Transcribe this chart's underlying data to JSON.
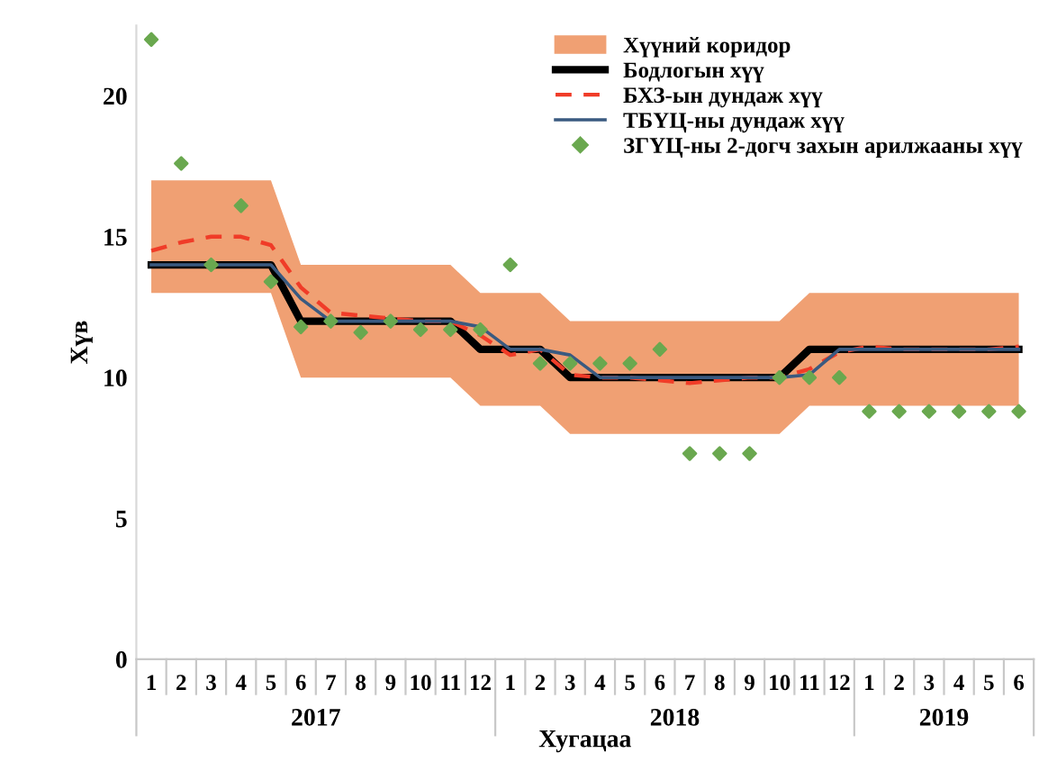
{
  "chart_data": {
    "type": "line",
    "xlabel": "Хугацаа",
    "ylabel": "Хүв",
    "categories": [
      "1",
      "2",
      "3",
      "4",
      "5",
      "6",
      "7",
      "8",
      "9",
      "10",
      "11",
      "12",
      "1",
      "2",
      "3",
      "4",
      "5",
      "6",
      "7",
      "8",
      "9",
      "10",
      "11",
      "12",
      "1",
      "2",
      "3",
      "4",
      "5",
      "6"
    ],
    "annotations": [
      "2017",
      "2018",
      "2019"
    ],
    "ylim": [
      0,
      22.5
    ],
    "yticks": [
      0,
      5,
      10,
      15,
      20
    ],
    "grid": false,
    "legend": "top right",
    "series": [
      {
        "name": "Хүүний коридор",
        "type": "area",
        "color": "#f0a073",
        "values": [
          null,
          null,
          null,
          null,
          null,
          null,
          null,
          null,
          null,
          null,
          null,
          null,
          null,
          null,
          null,
          null,
          null,
          null,
          null,
          null,
          null,
          null,
          null,
          null,
          null,
          null,
          null,
          null,
          null,
          null
        ],
        "lower": [
          13,
          13,
          13,
          13,
          13,
          10,
          10,
          10,
          10,
          10,
          10,
          9,
          9,
          9,
          8,
          8,
          8,
          8,
          8,
          8,
          8,
          8,
          9,
          9,
          9,
          9,
          9,
          9,
          9,
          9
        ],
        "upper": [
          17,
          17,
          17,
          17,
          17,
          14,
          14,
          14,
          14,
          14,
          14,
          13,
          13,
          13,
          12,
          12,
          12,
          12,
          12,
          12,
          12,
          12,
          13,
          13,
          13,
          13,
          13,
          13,
          13,
          13
        ]
      },
      {
        "name": "Бодлогын хүү",
        "type": "line",
        "color": "#000000",
        "line_style": "solid",
        "marker": "none",
        "values": [
          14,
          14,
          14,
          14,
          14,
          12,
          12,
          12,
          12,
          12,
          12,
          11,
          11,
          11,
          10,
          10,
          10,
          10,
          10,
          10,
          10,
          10,
          11,
          11,
          11,
          11,
          11,
          11,
          11,
          11
        ]
      },
      {
        "name": "БХЗ-ын дундаж хүү",
        "type": "line",
        "color": "#f03c28",
        "line_style": "dashed",
        "marker": "none",
        "values": [
          14.5,
          14.8,
          15.0,
          15.0,
          14.7,
          13.2,
          12.3,
          12.2,
          12.1,
          12.0,
          12.0,
          11.5,
          10.8,
          11.0,
          10.1,
          10.0,
          10.0,
          9.9,
          9.8,
          9.9,
          10.0,
          10.0,
          10.3,
          10.9,
          11.1,
          11.0,
          11.0,
          11.0,
          11.0,
          11.1
        ]
      },
      {
        "name": "ТБҮЦ-ны дундаж хүү",
        "type": "line",
        "color": "#3a5a80",
        "line_style": "solid",
        "marker": "none",
        "values": [
          14,
          14,
          14,
          14,
          14,
          12.8,
          12,
          12,
          12,
          12,
          12,
          11.8,
          11,
          11,
          10.8,
          10,
          10,
          10,
          10,
          10,
          10,
          10,
          10.1,
          11,
          11,
          11,
          11,
          11,
          11,
          11
        ]
      },
      {
        "name": "ЗГҮЦ-ны 2-догч захын арилжааны хүү",
        "type": "scatter",
        "color": "#6aa84f",
        "marker": "diamond",
        "values": [
          22.0,
          17.6,
          14.0,
          16.1,
          13.4,
          11.8,
          12.0,
          11.6,
          12.0,
          11.7,
          11.7,
          11.7,
          14.0,
          10.5,
          10.5,
          10.5,
          10.5,
          11.0,
          7.3,
          7.3,
          7.3,
          10.0,
          10.0,
          10.0,
          8.8,
          8.8,
          8.8,
          8.8,
          8.8,
          8.8
        ]
      }
    ]
  }
}
